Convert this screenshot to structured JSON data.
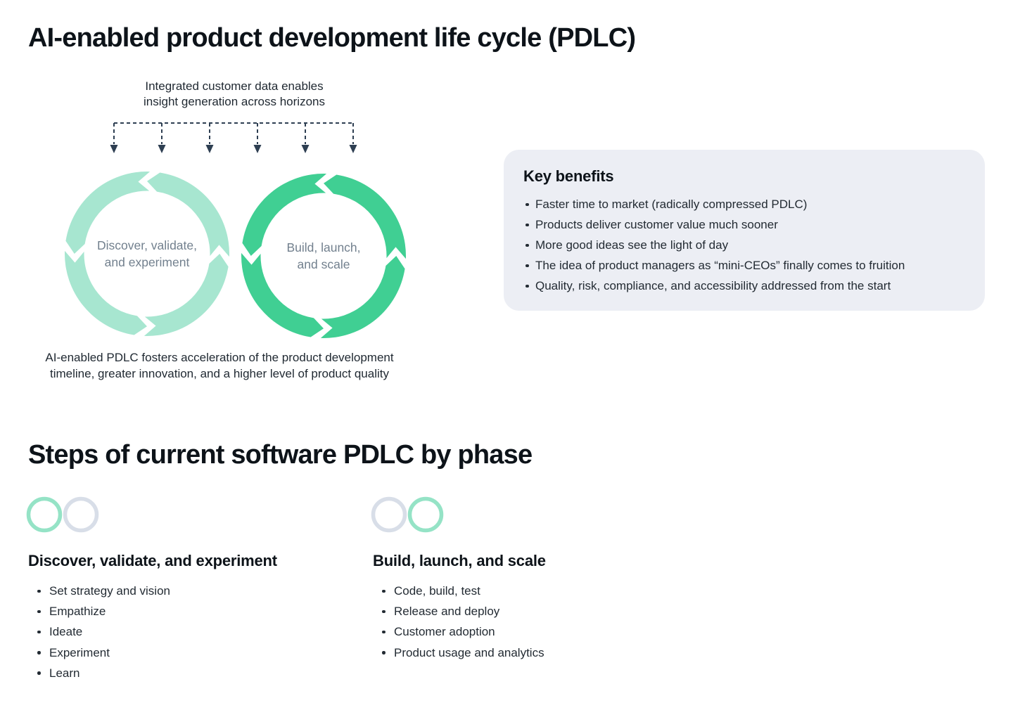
{
  "colors": {
    "page_bg": "#ffffff",
    "heading_text": "#0d1319",
    "body_text": "#232b33",
    "connector": "#2e3f52",
    "ring_discover": "#a7e6d0",
    "ring_build": "#40cf93",
    "ring_label": "#72808e",
    "card_bg": "#eceef4",
    "indicator_on": "#95e3c6",
    "indicator_off": "#d8dee8"
  },
  "header": {
    "title": "AI-enabled product development life cycle (PDLC)"
  },
  "cycle_diagram": {
    "annotation": "Integrated customer data enables\ninsight generation across horizons",
    "arrow_count": 6,
    "rings": [
      {
        "label": "Discover, validate,\nand experiment",
        "color_key": "ring_discover"
      },
      {
        "label": "Build, launch,\nand scale",
        "color_key": "ring_build"
      }
    ],
    "caption": "AI-enabled PDLC fosters acceleration of the product development\ntimeline, greater innovation, and a higher level of product quality"
  },
  "key_benefits": {
    "title": "Key benefits",
    "items": [
      "Faster time to market (radically compressed PDLC)",
      "Products deliver customer value much sooner",
      "More good ideas see the light of day",
      "The idea of product managers as “mini-CEOs” finally comes to fruition",
      "Quality, risk, compliance, and accessibility addressed from the start"
    ]
  },
  "steps_section": {
    "title": "Steps of current software PDLC by phase",
    "phases": [
      {
        "name": "Discover, validate, and experiment",
        "indicator_states": [
          "on",
          "off"
        ],
        "items": [
          "Set strategy and vision",
          "Empathize",
          "Ideate",
          "Experiment",
          "Learn"
        ]
      },
      {
        "name": "Build, launch, and scale",
        "indicator_states": [
          "off",
          "on"
        ],
        "items": [
          "Code, build, test",
          "Release and deploy",
          "Customer adoption",
          "Product usage and analytics"
        ]
      }
    ]
  }
}
